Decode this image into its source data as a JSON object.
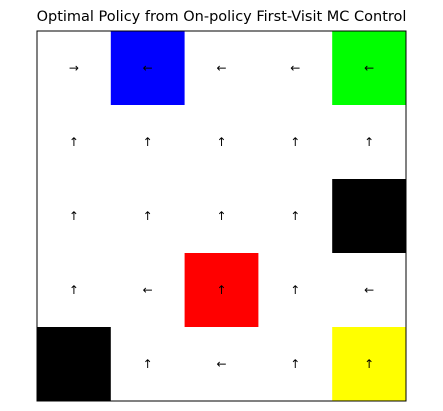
{
  "title": "Optimal Policy from On-policy First-Visit MC Control",
  "colors": {
    "background": "#ffffff",
    "blue": "#0000ff",
    "green": "#00ff00",
    "red": "#ff0000",
    "yellow": "#ffff00",
    "black": "#000000",
    "text": "#000000"
  },
  "grid": {
    "rows": 5,
    "cols": 5,
    "cells": [
      [
        {
          "fill": "white",
          "arrow": "→"
        },
        {
          "fill": "blue",
          "arrow": "←"
        },
        {
          "fill": "white",
          "arrow": "←"
        },
        {
          "fill": "white",
          "arrow": "←"
        },
        {
          "fill": "green",
          "arrow": "←"
        }
      ],
      [
        {
          "fill": "white",
          "arrow": "↑"
        },
        {
          "fill": "white",
          "arrow": "↑"
        },
        {
          "fill": "white",
          "arrow": "↑"
        },
        {
          "fill": "white",
          "arrow": "↑"
        },
        {
          "fill": "white",
          "arrow": "↑"
        }
      ],
      [
        {
          "fill": "white",
          "arrow": "↑"
        },
        {
          "fill": "white",
          "arrow": "↑"
        },
        {
          "fill": "white",
          "arrow": "↑"
        },
        {
          "fill": "white",
          "arrow": "↑"
        },
        {
          "fill": "black",
          "arrow": ""
        }
      ],
      [
        {
          "fill": "white",
          "arrow": "↑"
        },
        {
          "fill": "white",
          "arrow": "←"
        },
        {
          "fill": "red",
          "arrow": "↑"
        },
        {
          "fill": "white",
          "arrow": "↑"
        },
        {
          "fill": "white",
          "arrow": "←"
        }
      ],
      [
        {
          "fill": "black",
          "arrow": ""
        },
        {
          "fill": "white",
          "arrow": "↑"
        },
        {
          "fill": "white",
          "arrow": "←"
        },
        {
          "fill": "white",
          "arrow": "↑"
        },
        {
          "fill": "yellow",
          "arrow": "↑"
        }
      ]
    ]
  }
}
